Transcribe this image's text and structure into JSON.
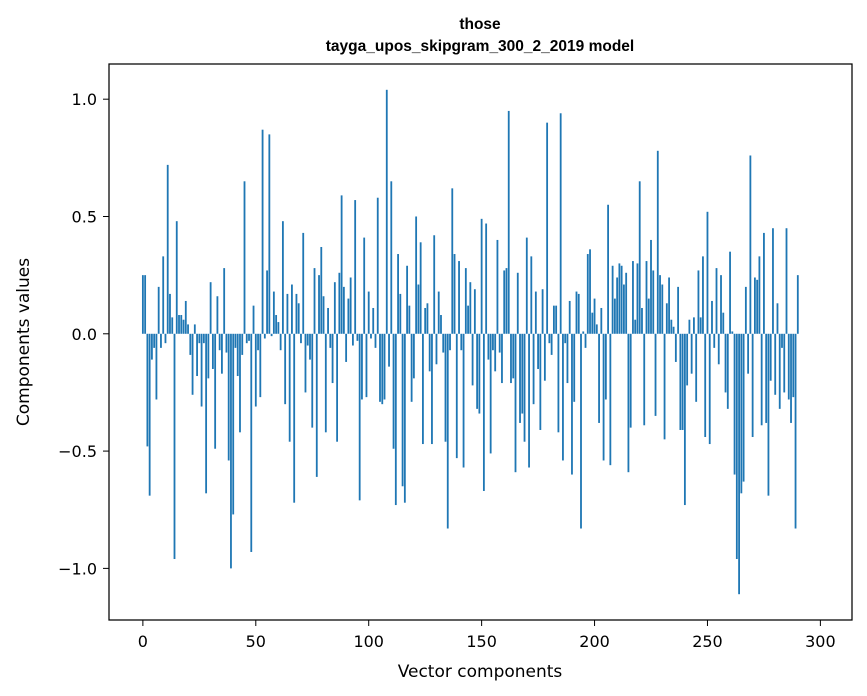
{
  "chart_data": {
    "type": "bar",
    "title_line1": "those",
    "title_line2": "tayga_upos_skipgram_300_2_2019 model",
    "xlabel": "Vector components",
    "ylabel": "Components values",
    "xlim": [
      -15,
      314
    ],
    "ylim": [
      -1.22,
      1.15
    ],
    "xticks": [
      0,
      50,
      100,
      150,
      200,
      250,
      300
    ],
    "yticks": [
      -1.0,
      -0.5,
      0.0,
      0.5,
      1.0
    ],
    "ytick_labels": [
      "−1.0",
      "−0.5",
      "0.0",
      "0.5",
      "1.0"
    ],
    "xtick_labels": [
      "0",
      "50",
      "100",
      "150",
      "200",
      "250",
      "300"
    ],
    "grid": false,
    "bar_color": "#1f77b4",
    "values": [
      0.25,
      0.25,
      -0.48,
      -0.69,
      -0.11,
      -0.06,
      -0.28,
      0.2,
      -0.06,
      0.33,
      -0.04,
      0.72,
      0.17,
      0.07,
      -0.96,
      0.48,
      0.08,
      0.08,
      0.06,
      0.14,
      0.04,
      -0.09,
      -0.26,
      0.04,
      -0.18,
      -0.04,
      -0.31,
      -0.04,
      -0.68,
      -0.19,
      0.22,
      -0.15,
      -0.49,
      0.16,
      -0.07,
      -0.17,
      0.28,
      -0.08,
      -0.54,
      -1.0,
      -0.77,
      -0.06,
      -0.18,
      -0.42,
      -0.09,
      0.65,
      -0.04,
      -0.03,
      -0.93,
      0.12,
      -0.31,
      -0.07,
      -0.27,
      0.87,
      -0.02,
      0.27,
      0.85,
      -0.01,
      0.18,
      0.08,
      0.05,
      -0.07,
      0.48,
      -0.3,
      0.17,
      -0.46,
      0.21,
      -0.72,
      0.17,
      0.13,
      -0.04,
      0.43,
      -0.25,
      -0.05,
      -0.11,
      -0.4,
      0.28,
      -0.61,
      0.25,
      0.37,
      0.16,
      -0.42,
      0.11,
      -0.06,
      -0.21,
      0.22,
      -0.46,
      0.26,
      0.59,
      0.2,
      -0.12,
      0.15,
      0.24,
      -0.05,
      0.57,
      -0.03,
      -0.71,
      -0.28,
      0.41,
      -0.27,
      0.18,
      -0.02,
      0.11,
      -0.06,
      0.58,
      -0.29,
      -0.3,
      -0.28,
      1.04,
      -0.14,
      0.65,
      -0.49,
      -0.73,
      0.34,
      0.17,
      -0.65,
      -0.72,
      0.29,
      0.12,
      -0.29,
      -0.19,
      0.5,
      0.21,
      0.39,
      -0.47,
      0.11,
      0.13,
      -0.16,
      -0.47,
      0.42,
      -0.13,
      0.18,
      0.08,
      -0.08,
      -0.46,
      -0.83,
      -0.07,
      0.62,
      0.34,
      -0.53,
      0.31,
      -0.07,
      -0.57,
      0.28,
      0.12,
      0.22,
      -0.22,
      0.19,
      -0.32,
      -0.34,
      0.49,
      -0.67,
      0.47,
      -0.11,
      -0.51,
      -0.07,
      -0.16,
      0.4,
      -0.08,
      -0.21,
      0.27,
      0.28,
      0.95,
      -0.21,
      -0.19,
      -0.59,
      0.26,
      -0.38,
      -0.34,
      -0.46,
      0.41,
      -0.57,
      0.33,
      -0.3,
      0.18,
      -0.15,
      -0.41,
      0.19,
      -0.2,
      0.9,
      -0.04,
      -0.09,
      0.12,
      0.12,
      -0.42,
      0.94,
      -0.54,
      -0.04,
      -0.21,
      0.14,
      -0.6,
      -0.29,
      0.18,
      0.17,
      -0.83,
      0.01,
      -0.06,
      0.34,
      0.36,
      0.09,
      0.15,
      0.04,
      -0.38,
      0.11,
      -0.54,
      -0.28,
      0.55,
      -0.56,
      0.29,
      0.15,
      0.24,
      0.3,
      0.29,
      0.21,
      0.26,
      -0.59,
      -0.4,
      0.31,
      0.06,
      0.3,
      0.65,
      0.11,
      -0.39,
      0.31,
      0.15,
      0.4,
      0.27,
      -0.35,
      0.78,
      0.25,
      0.21,
      -0.45,
      0.13,
      0.24,
      0.06,
      0.03,
      -0.12,
      0.2,
      -0.41,
      -0.41,
      -0.73,
      -0.22,
      0.06,
      -0.17,
      0.07,
      -0.29,
      0.27,
      0.07,
      0.33,
      -0.44,
      0.52,
      -0.47,
      0.14,
      -0.06,
      0.28,
      -0.13,
      0.25,
      0.09,
      -0.25,
      -0.32,
      0.35,
      0.01,
      -0.6,
      -0.96,
      -1.11,
      -0.68,
      -0.63,
      0.2,
      -0.17,
      0.76,
      -0.44,
      0.24,
      0.23,
      0.33,
      -0.39,
      0.43,
      -0.38,
      -0.69,
      -0.2,
      0.45,
      -0.26,
      0.13,
      -0.32,
      -0.06,
      -0.25,
      0.45,
      -0.28,
      -0.38,
      -0.27,
      -0.83,
      0.25
    ]
  }
}
